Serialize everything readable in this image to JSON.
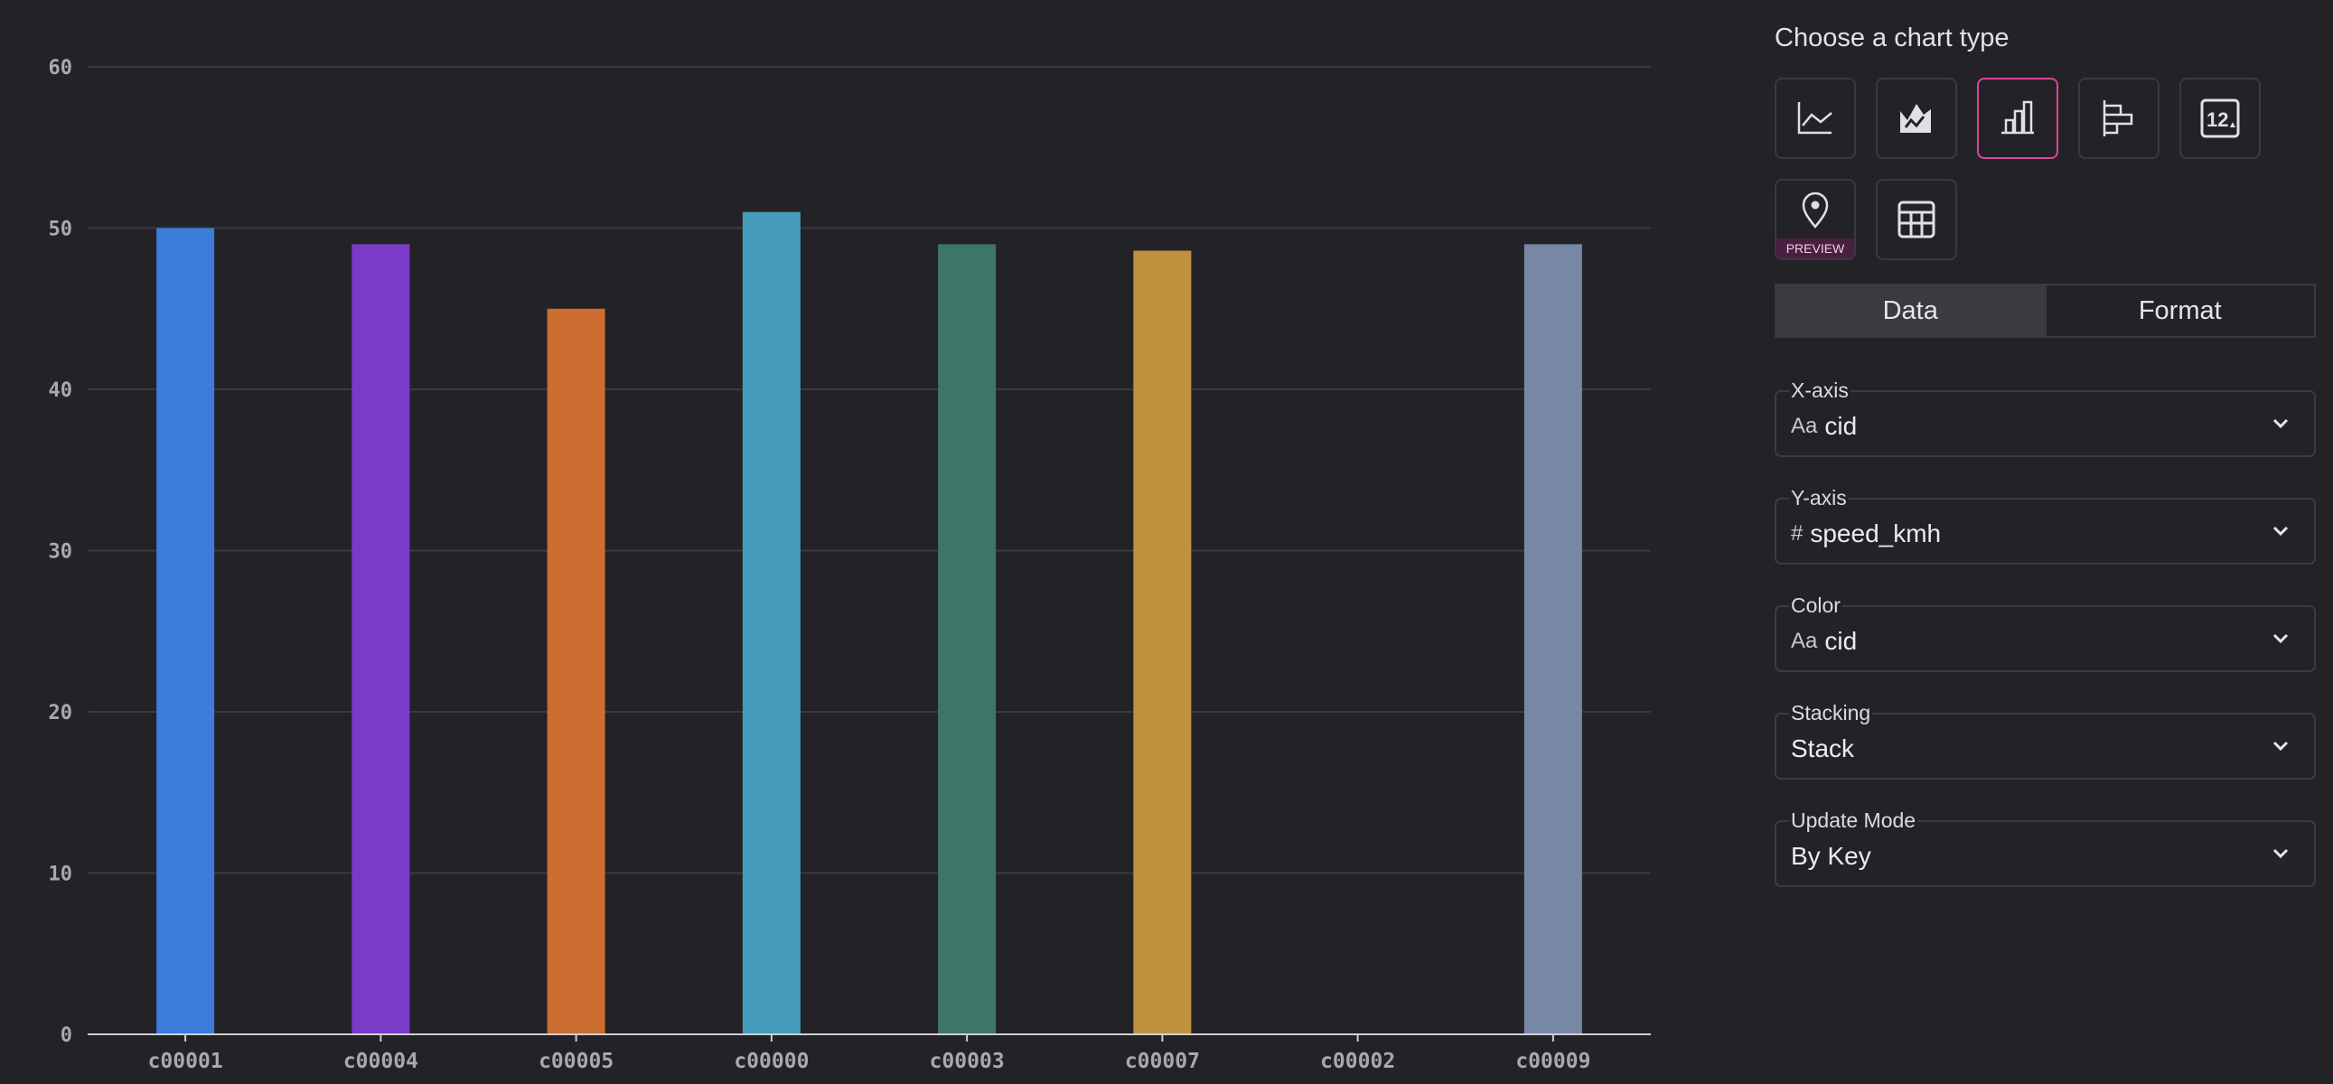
{
  "chart_data": {
    "type": "bar",
    "categories": [
      "c00001",
      "c00004",
      "c00005",
      "c00000",
      "c00003",
      "c00007",
      "c00002",
      "c00009"
    ],
    "values": [
      50,
      49,
      45,
      51,
      49,
      48.6,
      0,
      49
    ],
    "colors": [
      "#3b7dd8",
      "#7b3bc8",
      "#cc6d32",
      "#459bba",
      "#3d7566",
      "#bf923f",
      "#8a8a8a",
      "#7788a4"
    ],
    "ylim": [
      0,
      60
    ],
    "yticks": [
      0,
      10,
      20,
      30,
      40,
      50,
      60
    ],
    "grid": true,
    "xlabel": "",
    "ylabel": "",
    "title": ""
  },
  "panel": {
    "title": "Choose a chart type",
    "chart_types": [
      {
        "icon": "line-chart-icon",
        "selected": false
      },
      {
        "icon": "area-chart-icon",
        "selected": false
      },
      {
        "icon": "bar-chart-icon",
        "selected": true
      },
      {
        "icon": "horizontal-bar-chart-icon",
        "selected": false
      },
      {
        "icon": "number-card-icon",
        "selected": false
      },
      {
        "icon": "map-pin-icon",
        "selected": false,
        "badge": "PREVIEW"
      },
      {
        "icon": "table-icon",
        "selected": false
      }
    ],
    "number_icon_text": "12",
    "tabs": [
      {
        "label": "Data",
        "active": true
      },
      {
        "label": "Format",
        "active": false
      }
    ],
    "fields": [
      {
        "label": "X-axis",
        "type_icon": "Aa",
        "value": "cid"
      },
      {
        "label": "Y-axis",
        "type_icon": "#",
        "value": "speed_kmh"
      },
      {
        "label": "Color",
        "type_icon": "Aa",
        "value": "cid"
      },
      {
        "label": "Stacking",
        "type_icon": "",
        "value": "Stack"
      },
      {
        "label": "Update Mode",
        "type_icon": "",
        "value": "By Key"
      }
    ],
    "accent": "#d9479b"
  }
}
